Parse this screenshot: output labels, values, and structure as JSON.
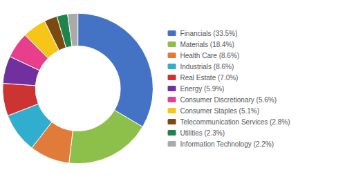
{
  "chart_data": {
    "type": "donut",
    "categories": [
      "Financials (33.5%)",
      "Materials (18.4%)",
      "Health Care (8.6%)",
      "Industrials (8.6%)",
      "Real Estate (7.0%)",
      "Energy (5.9%)",
      "Consumer Discretionary (5.6%)",
      "Consumer Staples (5.1%)",
      "Telecommunication Services (2.8%)",
      "Utilities (2.3%)",
      "Information Technology (2.2%)"
    ],
    "values": [
      33.5,
      18.4,
      8.6,
      8.6,
      7.0,
      5.9,
      5.6,
      5.1,
      2.8,
      2.3,
      2.2
    ],
    "colors": [
      "#4472C4",
      "#8DC04B",
      "#E07B39",
      "#31ADCE",
      "#CC3333",
      "#7030A0",
      "#E83E8C",
      "#F5C518",
      "#7B4A10",
      "#1E8449",
      "#AAAAAA"
    ],
    "legend": "right"
  }
}
